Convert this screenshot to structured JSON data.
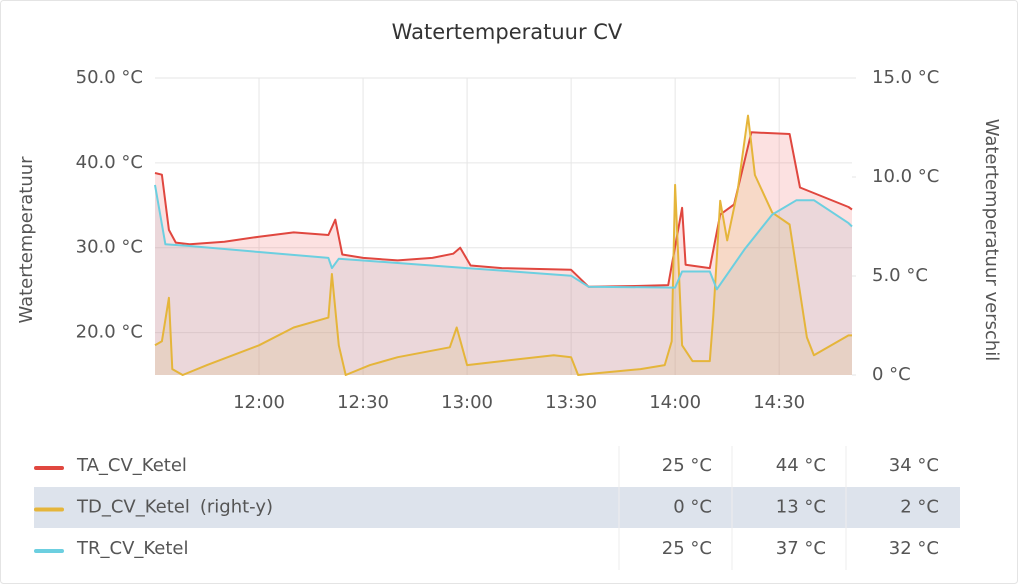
{
  "chart_data": {
    "type": "line",
    "title": "Watertemperatuur CV",
    "y_label": "Watertemperatuur",
    "y2_label": "Watertemperatuur verschil",
    "xlim": [
      "11:30",
      "14:51"
    ],
    "xticks": [
      "12:00",
      "12:30",
      "13:00",
      "13:30",
      "14:00",
      "14:30"
    ],
    "ylim": [
      15,
      50
    ],
    "yticks": [
      {
        "value": 20,
        "label": "20.0 °C"
      },
      {
        "value": 30,
        "label": "30.0 °C"
      },
      {
        "value": 40,
        "label": "40.0 °C"
      },
      {
        "value": 50,
        "label": "50.0 °C"
      }
    ],
    "y2lim": [
      0,
      15
    ],
    "y2ticks": [
      {
        "value": 0,
        "label": "0 °C"
      },
      {
        "value": 5,
        "label": "5.0 °C"
      },
      {
        "value": 10,
        "label": "10.0 °C"
      },
      {
        "value": 15,
        "label": "15.0 °C"
      }
    ],
    "grid": true,
    "legend": "bottom",
    "series": [
      {
        "name": "TA_CV_Ketel",
        "color": "#e0473f",
        "fill": "rgba(240,120,120,0.22)",
        "x": [
          "11:30",
          "11:32",
          "11:34",
          "11:36",
          "11:40",
          "11:50",
          "12:00",
          "12:10",
          "12:20",
          "12:22",
          "12:24",
          "12:30",
          "12:40",
          "12:50",
          "12:56",
          "12:58",
          "13:01",
          "13:10",
          "13:30",
          "13:35",
          "13:50",
          "13:58",
          "14:02",
          "14:03",
          "14:10",
          "14:13",
          "14:17",
          "14:22",
          "14:33",
          "14:36",
          "14:50",
          "14:51"
        ],
        "values": [
          38.8,
          38.6,
          32.1,
          30.6,
          30.4,
          30.7,
          31.3,
          31.8,
          31.5,
          33.3,
          29.2,
          28.8,
          28.5,
          28.8,
          29.3,
          30.0,
          27.9,
          27.6,
          27.4,
          25.4,
          25.5,
          25.6,
          34.7,
          28.0,
          27.6,
          33.9,
          35.1,
          43.6,
          43.4,
          37.1,
          34.8,
          34.5
        ],
        "legend_values": [
          25,
          44,
          34
        ],
        "legend_value_labels": [
          "25 °C",
          "44 °C",
          "34 °C"
        ]
      },
      {
        "name": "TD_CV_Ketel",
        "axis": "y2",
        "axis_note": "(right-y)",
        "color": "#e5b53a",
        "fill": "rgba(230,190,110,0.22)",
        "x": [
          "11:30",
          "11:32",
          "11:34",
          "11:35",
          "11:38",
          "11:45",
          "12:00",
          "12:10",
          "12:20",
          "12:21",
          "12:23",
          "12:25",
          "12:32",
          "12:40",
          "12:55",
          "12:57",
          "13:00",
          "13:10",
          "13:25",
          "13:30",
          "13:32",
          "13:50",
          "13:57",
          "13:59",
          "14:00",
          "14:02",
          "14:05",
          "14:10",
          "14:11",
          "14:13",
          "14:15",
          "14:18",
          "14:21",
          "14:23",
          "14:28",
          "14:33",
          "14:38",
          "14:40",
          "14:50",
          "14:51"
        ],
        "values": [
          1.5,
          1.7,
          3.9,
          0.3,
          0,
          0.5,
          1.5,
          2.4,
          2.9,
          5.1,
          1.5,
          0,
          0.5,
          0.9,
          1.4,
          2.4,
          0.5,
          0.7,
          1.0,
          0.9,
          0,
          0.3,
          0.5,
          1.7,
          9.6,
          1.5,
          0.7,
          0.7,
          3.0,
          8.8,
          6.8,
          9.3,
          13.1,
          10.1,
          8.2,
          7.6,
          1.9,
          1.0,
          2.0,
          2.0
        ],
        "legend_values": [
          0,
          13,
          2
        ],
        "legend_value_labels": [
          "0 °C",
          "13 °C",
          "2 °C"
        ]
      },
      {
        "name": "TR_CV_Ketel",
        "color": "#6ccfe0",
        "fill": "rgba(160,170,190,0.18)",
        "x": [
          "11:30",
          "11:33",
          "11:40",
          "12:00",
          "12:20",
          "12:21",
          "12:23",
          "12:40",
          "13:00",
          "13:30",
          "13:35",
          "14:00",
          "14:02",
          "14:10",
          "14:12",
          "14:20",
          "14:28",
          "14:35",
          "14:40",
          "14:50",
          "14:51"
        ],
        "values": [
          37.4,
          30.4,
          30.2,
          29.5,
          28.8,
          27.6,
          28.7,
          28.2,
          27.6,
          26.7,
          25.4,
          25.3,
          27.2,
          27.2,
          25.1,
          29.8,
          33.9,
          35.6,
          35.6,
          32.9,
          32.5
        ],
        "legend_values": [
          25,
          37,
          32
        ],
        "legend_value_labels": [
          "25 °C",
          "37 °C",
          "32 °C"
        ]
      }
    ]
  }
}
